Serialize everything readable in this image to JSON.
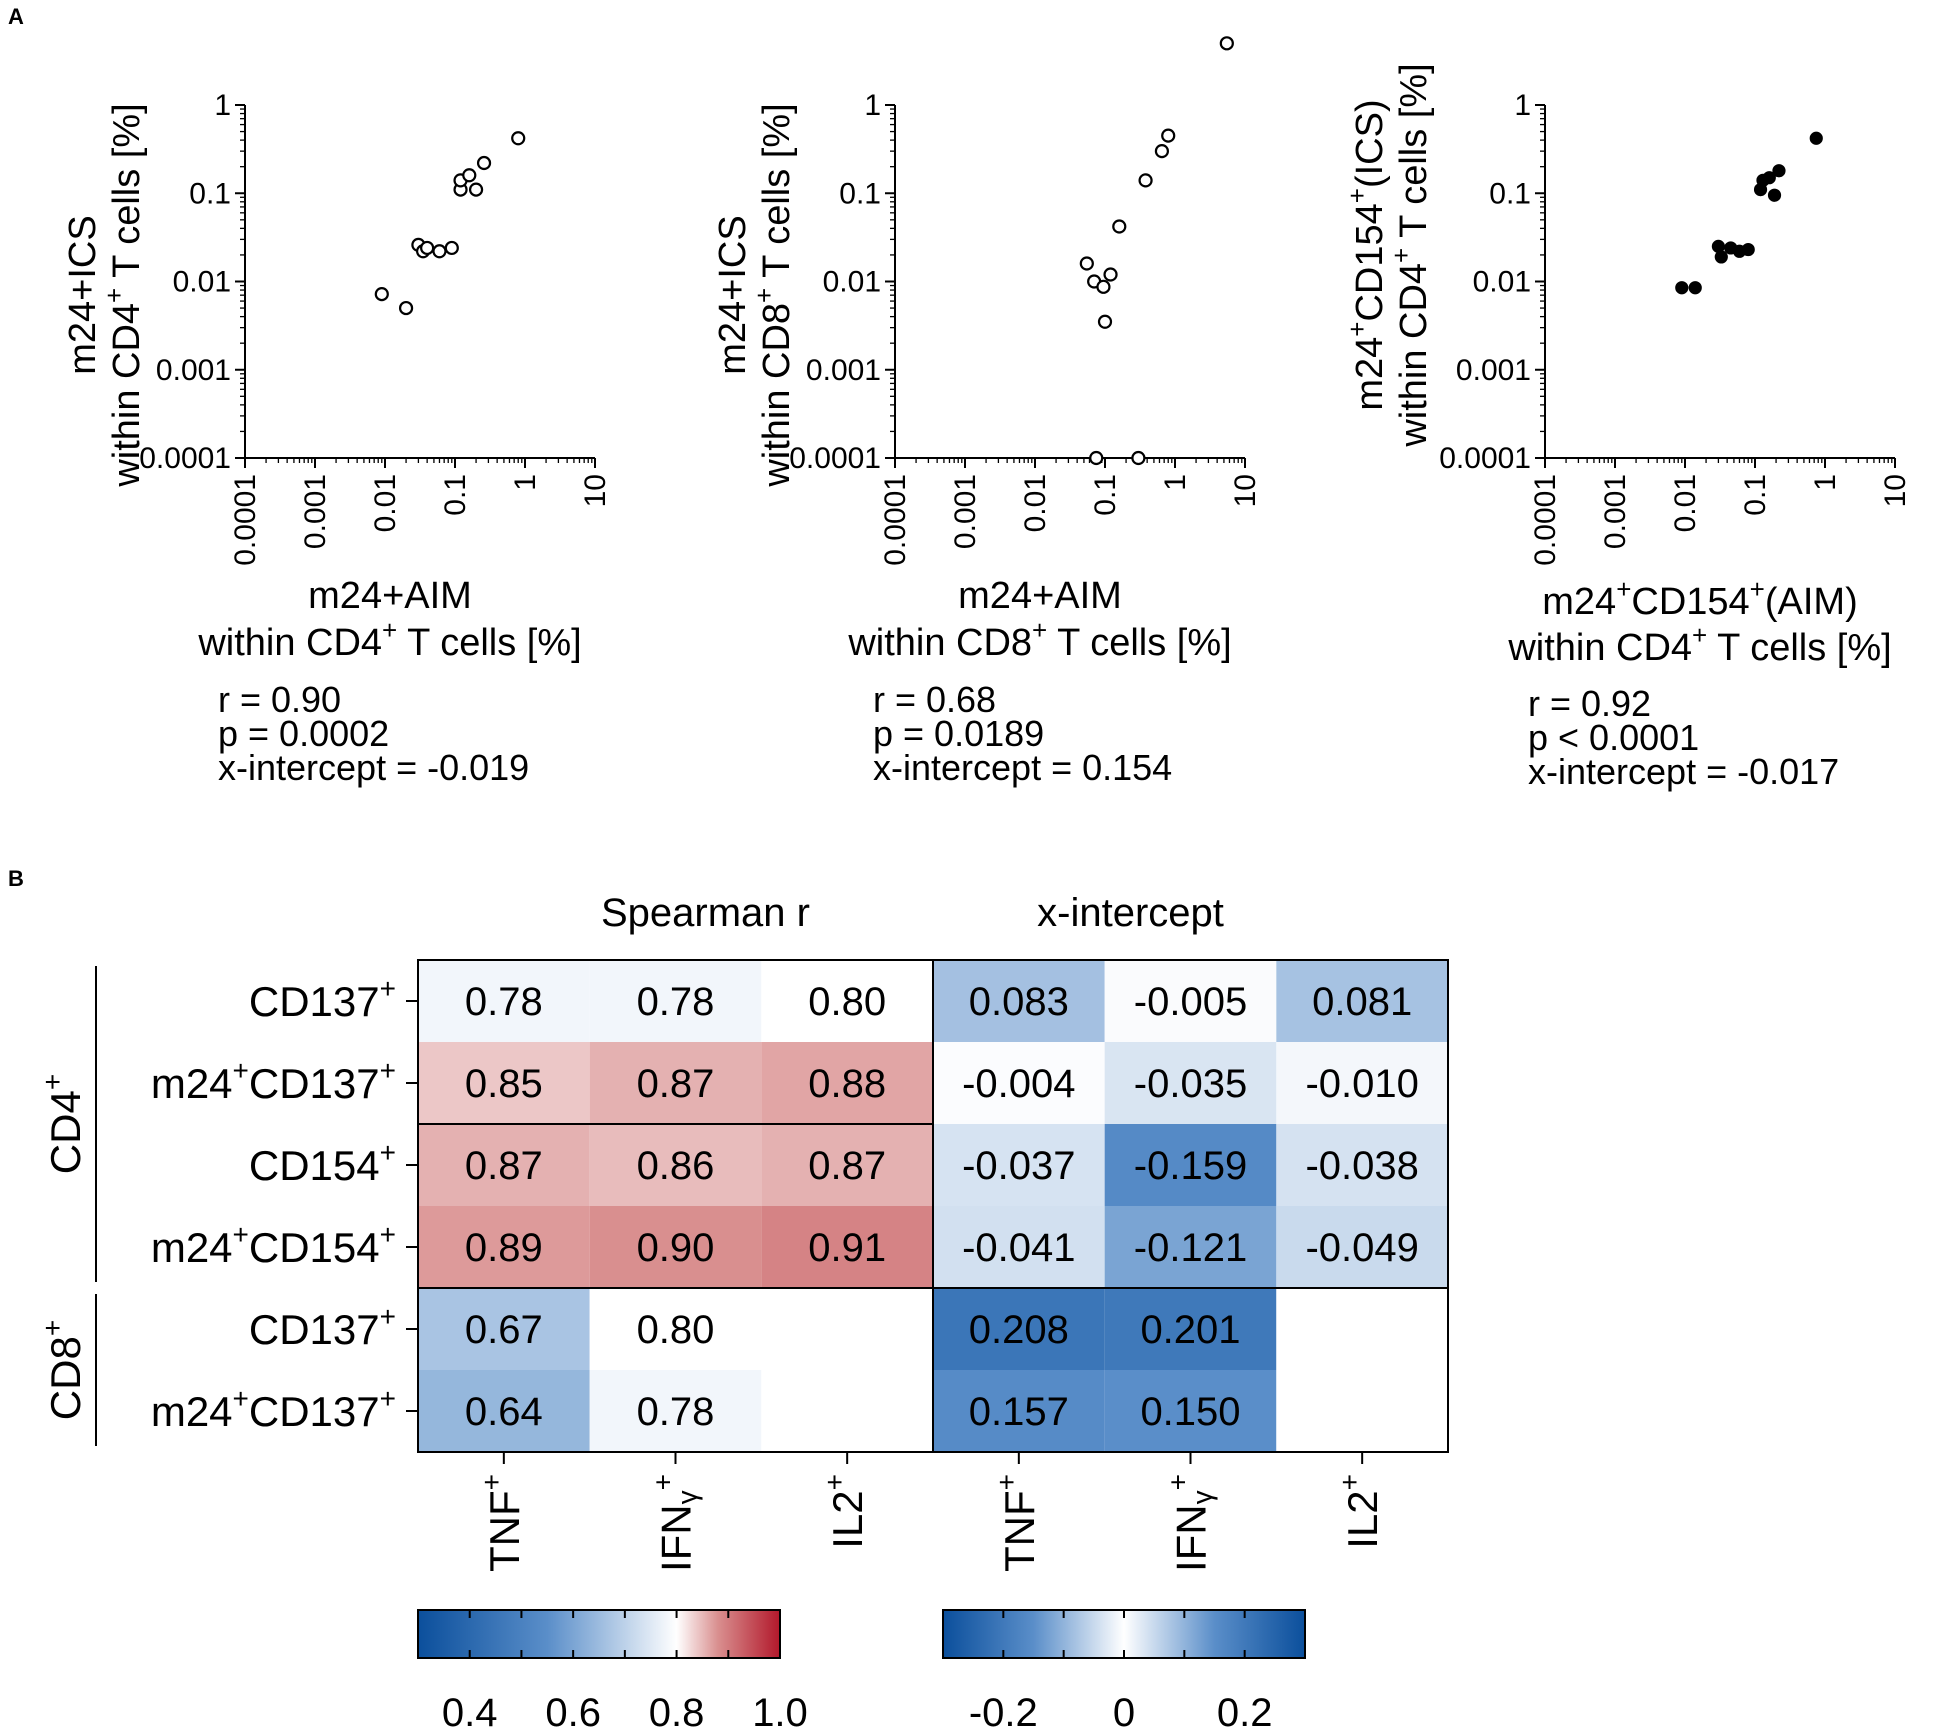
{
  "panel_labels": [
    "A",
    "B"
  ],
  "chart_data": [
    {
      "type": "scatter",
      "scale": "log",
      "xlim": [
        0.0001,
        10
      ],
      "ylim": [
        0.0001,
        10
      ],
      "tick_labels": [
        "0.0001",
        "0.001",
        "0.01",
        "0.1",
        "1",
        "10"
      ],
      "xlabel": [
        "m24+AIM",
        "within CD4",
        "+",
        " T cells [%]"
      ],
      "ylabel": [
        "m24+ICS",
        "within CD4",
        "+",
        " T cells [%]"
      ],
      "marker": "open",
      "points": [
        [
          0.009,
          0.0072
        ],
        [
          0.02,
          0.005
        ],
        [
          0.03,
          0.026
        ],
        [
          0.035,
          0.022
        ],
        [
          0.04,
          0.024
        ],
        [
          0.06,
          0.022
        ],
        [
          0.09,
          0.024
        ],
        [
          0.12,
          0.11
        ],
        [
          0.12,
          0.14
        ],
        [
          0.16,
          0.16
        ],
        [
          0.2,
          0.11
        ],
        [
          0.26,
          0.22
        ],
        [
          0.8,
          0.42
        ]
      ],
      "stats": [
        "r = 0.90",
        "p = 0.0002",
        "x-intercept = -0.019"
      ]
    },
    {
      "type": "scatter",
      "scale": "log",
      "xlim": [
        0.0001,
        10
      ],
      "ylim": [
        0.0001,
        10
      ],
      "tick_labels": [
        "0.0001",
        "0.001",
        "0.01",
        "0.1",
        "1",
        "10"
      ],
      "xlabel": [
        "m24+AIM",
        "within CD8",
        "+",
        " T cells [%]"
      ],
      "ylabel": [
        "m24+ICS",
        "within CD8",
        "+",
        " T cells [%]"
      ],
      "marker": "open",
      "points": [
        [
          0.055,
          0.016
        ],
        [
          0.07,
          0.01
        ],
        [
          0.075,
          0.0001
        ],
        [
          0.095,
          0.0087
        ],
        [
          0.1,
          0.0035
        ],
        [
          0.12,
          0.012
        ],
        [
          0.16,
          0.042
        ],
        [
          0.3,
          0.0001
        ],
        [
          0.38,
          0.14
        ],
        [
          0.65,
          0.3
        ],
        [
          0.8,
          0.45
        ],
        [
          5.5,
          5
        ]
      ],
      "stats": [
        "r = 0.68",
        "p = 0.0189",
        "x-intercept = 0.154"
      ]
    },
    {
      "type": "scatter",
      "scale": "log",
      "xlim": [
        0.0001,
        10
      ],
      "ylim": [
        0.0001,
        10
      ],
      "tick_labels": [
        "0.0001",
        "0.001",
        "0.01",
        "0.1",
        "1",
        "10"
      ],
      "xlabel": [
        "m24",
        "+",
        "CD154",
        "+",
        "(AIM)",
        "within CD4",
        "+",
        " T cells [%]"
      ],
      "ylabel": [
        "m24",
        "+",
        "CD154",
        "+",
        "(ICS)",
        "within CD4",
        "+",
        " T cells [%]"
      ],
      "marker": "filled",
      "points": [
        [
          0.009,
          0.0085
        ],
        [
          0.014,
          0.0085
        ],
        [
          0.03,
          0.025
        ],
        [
          0.033,
          0.019
        ],
        [
          0.045,
          0.024
        ],
        [
          0.06,
          0.022
        ],
        [
          0.08,
          0.023
        ],
        [
          0.12,
          0.11
        ],
        [
          0.13,
          0.14
        ],
        [
          0.16,
          0.15
        ],
        [
          0.19,
          0.095
        ],
        [
          0.22,
          0.18
        ],
        [
          0.75,
          0.42
        ]
      ],
      "stats": [
        "r = 0.92",
        "p < 0.0001",
        "x-intercept = -0.017"
      ]
    },
    {
      "type": "heatmap",
      "panel_titles": [
        "Spearman r",
        "x-intercept"
      ],
      "columns": [
        "TNF",
        "IFN",
        "IL2",
        "TNF",
        "IFN",
        "IL2"
      ],
      "column_suffix": "γ",
      "superscript": "+",
      "row_groups": [
        {
          "name": "CD4",
          "rows": [
            0,
            3
          ]
        },
        {
          "name": "CD8",
          "rows": [
            4,
            5
          ]
        }
      ],
      "rows": [
        {
          "prefix": "",
          "label": "CD137",
          "spearman": [
            "0.78",
            "0.78",
            "0.80"
          ],
          "xint": [
            "0.083",
            "-0.005",
            "0.081"
          ]
        },
        {
          "prefix": "m24",
          "label": "CD137",
          "spearman": [
            "0.85",
            "0.87",
            "0.88"
          ],
          "xint": [
            "-0.004",
            "-0.035",
            "-0.010"
          ]
        },
        {
          "prefix": "",
          "label": "CD154",
          "spearman": [
            "0.87",
            "0.86",
            "0.87"
          ],
          "xint": [
            "-0.037",
            "-0.159",
            "-0.038"
          ]
        },
        {
          "prefix": "m24",
          "label": "CD154",
          "spearman": [
            "0.89",
            "0.90",
            "0.91"
          ],
          "xint": [
            "-0.041",
            "-0.121",
            "-0.049"
          ]
        },
        {
          "prefix": "",
          "label": "CD137",
          "spearman": [
            "0.67",
            "0.80",
            ""
          ],
          "xint": [
            "0.208",
            "0.201",
            ""
          ]
        },
        {
          "prefix": "m24",
          "label": "CD137",
          "spearman": [
            "0.64",
            "0.78",
            ""
          ],
          "xint": [
            "0.157",
            "0.150",
            ""
          ]
        }
      ],
      "colorbars": [
        {
          "range": [
            0.3,
            1.0
          ],
          "ticks": [
            "0.4",
            "0.6",
            "0.8",
            "1.0"
          ],
          "tick_values": [
            0.4,
            0.6,
            0.8,
            1.0
          ]
        },
        {
          "range": [
            -0.3,
            0.3
          ],
          "ticks": [
            "-0.2",
            "0",
            "0.2"
          ],
          "tick_values": [
            -0.2,
            0,
            0.2
          ]
        }
      ],
      "colors": {
        "blue_dark": "#0b4f9c",
        "blue_mid": "#5a8ec9",
        "white": "#ffffff",
        "red_mid": "#d98f8f",
        "red_dark": "#b2182b"
      }
    }
  ]
}
